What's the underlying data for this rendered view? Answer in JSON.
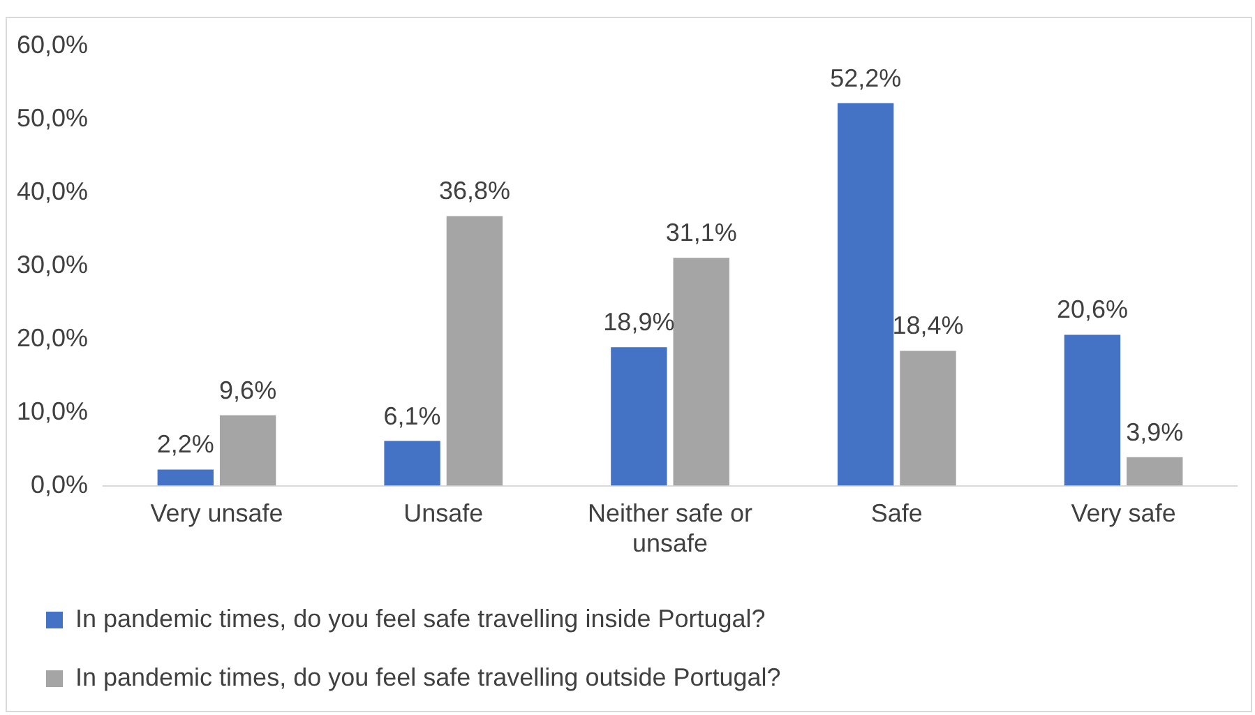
{
  "chart_data": {
    "type": "bar",
    "categories": [
      "Very unsafe",
      "Unsafe",
      "Neither safe or unsafe",
      "Safe",
      "Very safe"
    ],
    "series": [
      {
        "name": "In pandemic times, do you feel safe travelling inside Portugal?",
        "color": "#4472c4",
        "values": [
          2.2,
          6.1,
          18.9,
          52.2,
          20.6
        ],
        "value_labels": [
          "2,2%",
          "6,1%",
          "18,9%",
          "52,2%",
          "20,6%"
        ]
      },
      {
        "name": "In pandemic times, do you feel safe travelling outside Portugal?",
        "color": "#a5a5a5",
        "values": [
          9.6,
          36.8,
          31.1,
          18.4,
          3.9
        ],
        "value_labels": [
          "9,6%",
          "36,8%",
          "31,1%",
          "18,4%",
          "3,9%"
        ]
      }
    ],
    "ylim": [
      0,
      60
    ],
    "yticks": [
      {
        "value": 0,
        "label": "0,0%"
      },
      {
        "value": 10,
        "label": "10,0%"
      },
      {
        "value": 20,
        "label": "20,0%"
      },
      {
        "value": 30,
        "label": "30,0%"
      },
      {
        "value": 40,
        "label": "40,0%"
      },
      {
        "value": 50,
        "label": "50,0%"
      },
      {
        "value": 60,
        "label": "60,0%"
      }
    ],
    "grid": false,
    "legend": "bottom"
  }
}
